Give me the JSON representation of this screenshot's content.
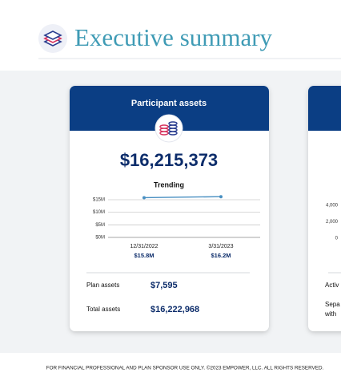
{
  "header": {
    "title": "Executive summary"
  },
  "card": {
    "title": "Participant assets",
    "total": "$16,215,373",
    "rows": [
      {
        "label": "Plan assets",
        "value": "$7,595"
      },
      {
        "label": "Total assets",
        "value": "$16,222,968"
      }
    ]
  },
  "chart_data": [
    {
      "type": "line",
      "title": "Trending",
      "categories": [
        "12/31/2022",
        "3/31/2023"
      ],
      "values": [
        15.8,
        16.2
      ],
      "value_labels": [
        "$15.8M",
        "$16.2M"
      ],
      "color": "#4a90c2",
      "ylim": [
        0,
        17
      ],
      "yticks": [
        {
          "value": 0,
          "label": "$0M"
        },
        {
          "value": 5,
          "label": "$5M"
        },
        {
          "value": 10,
          "label": "$10M"
        },
        {
          "value": 15,
          "label": "$15M"
        }
      ],
      "grid": true
    },
    {
      "type": "line",
      "ylim": [
        0,
        4000
      ],
      "yticks": [
        {
          "value": 0,
          "label": "0"
        },
        {
          "value": 2000,
          "label": "2,000"
        },
        {
          "value": 4000,
          "label": "4,000"
        }
      ]
    }
  ],
  "partial_card": {
    "lines": [
      "Activ",
      "Sepa",
      "with"
    ]
  },
  "footer": "FOR FINANCIAL PROFESSIONAL AND PLAN SPONSOR USE ONLY. ©2023 EMPOWER, LLC. ALL RIGHTS RESERVED."
}
